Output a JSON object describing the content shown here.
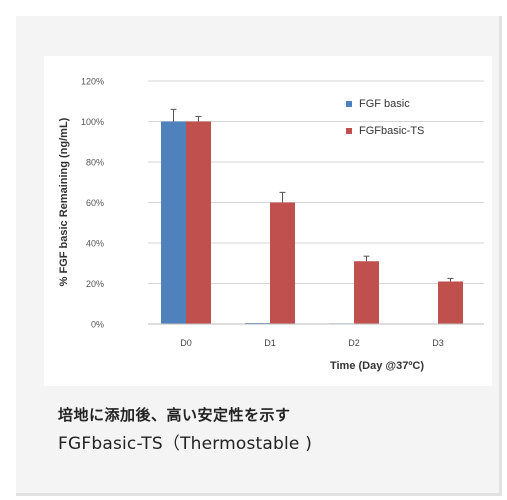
{
  "caption": {
    "line1": "培地に添加後、高い安定性を示す",
    "line2": "FGFbasic-TS（Thermostable )"
  },
  "chart_data": {
    "type": "bar",
    "categories": [
      "D0",
      "D1",
      "D2",
      "D3"
    ],
    "series": [
      {
        "name": "FGF basic",
        "values": [
          100,
          0.5,
          0.3,
          0.2
        ],
        "errors": [
          6,
          0,
          0,
          0
        ],
        "color": "#4f81bd"
      },
      {
        "name": "FGFbasic-TS",
        "values": [
          100,
          60,
          31,
          21
        ],
        "errors": [
          2.5,
          5,
          2.5,
          1.5
        ],
        "color": "#c0504d"
      }
    ],
    "title": "",
    "xlabel": "Time (Day @37ºC)",
    "ylabel": "% FGF basic Remaining (ng/mL)",
    "ylim": [
      0,
      120
    ],
    "yticks": [
      "0%",
      "20%",
      "40%",
      "60%",
      "80%",
      "100%",
      "120%"
    ],
    "grid": true,
    "legend": "top-right"
  }
}
